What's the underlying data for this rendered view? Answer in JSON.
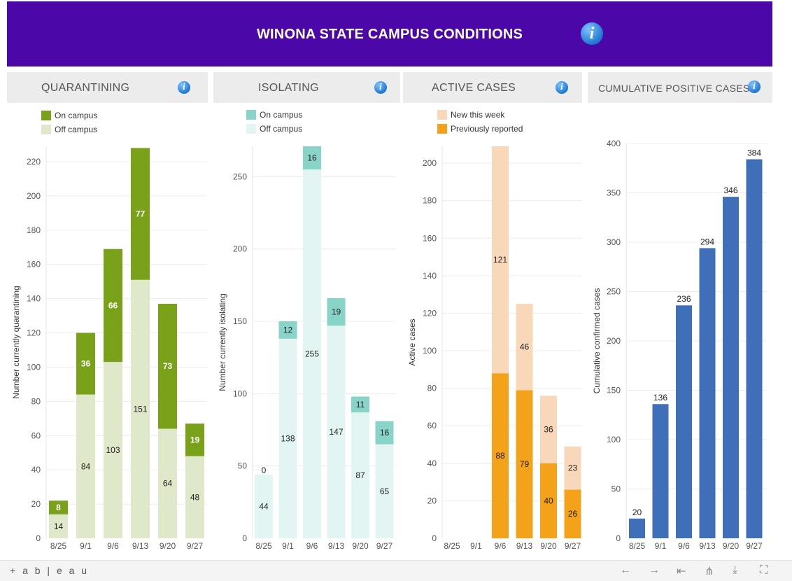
{
  "header": {
    "title": "WINONA STATE CAMPUS CONDITIONS",
    "info_glyph": "i"
  },
  "panels": [
    {
      "title": "QUARANTINING",
      "legend": [
        {
          "label": "On campus",
          "color": "#7aa11a"
        },
        {
          "label": "Off campus",
          "color": "#dfe8c9"
        }
      ]
    },
    {
      "title": "ISOLATING",
      "legend": [
        {
          "label": "On campus",
          "color": "#88d4c8"
        },
        {
          "label": "Off campus",
          "color": "#e3f5f2"
        }
      ]
    },
    {
      "title": "ACTIVE CASES",
      "legend": [
        {
          "label": "New this week",
          "color": "#f9d8b9"
        },
        {
          "label": "Previously reported",
          "color": "#f5a21b"
        }
      ]
    },
    {
      "title": "CUMULATIVE POSITIVE CASES",
      "legend": []
    }
  ],
  "chart_data": [
    {
      "type": "bar",
      "stacked": true,
      "categories": [
        "8/25",
        "9/1",
        "9/6",
        "9/13",
        "9/20",
        "9/27"
      ],
      "series": [
        {
          "name": "Off campus",
          "values": [
            14,
            84,
            103,
            151,
            64,
            48
          ],
          "color": "#dfe8c9"
        },
        {
          "name": "On campus",
          "values": [
            8,
            36,
            66,
            77,
            73,
            19
          ],
          "color": "#7aa11a"
        }
      ],
      "ylabel": "Number currently quarantining",
      "ylim": [
        0,
        229
      ],
      "yticks": [
        0,
        20,
        40,
        60,
        80,
        100,
        120,
        140,
        160,
        180,
        200,
        220
      ],
      "grid": true
    },
    {
      "type": "bar",
      "stacked": true,
      "categories": [
        "8/25",
        "9/1",
        "9/6",
        "9/13",
        "9/20",
        "9/27"
      ],
      "series": [
        {
          "name": "Off campus",
          "values": [
            44,
            138,
            255,
            147,
            87,
            65
          ],
          "color": "#e3f5f2"
        },
        {
          "name": "On campus",
          "values": [
            0,
            12,
            16,
            19,
            11,
            16
          ],
          "color": "#88d4c8"
        }
      ],
      "ylabel": "Number currently isolating",
      "ylim": [
        0,
        271
      ],
      "yticks": [
        0,
        50,
        100,
        150,
        200,
        250
      ],
      "grid": true
    },
    {
      "type": "bar",
      "stacked": true,
      "categories": [
        "8/25",
        "9/1",
        "9/6",
        "9/13",
        "9/20",
        "9/27"
      ],
      "series": [
        {
          "name": "Previously reported",
          "values": [
            null,
            null,
            88,
            79,
            40,
            26
          ],
          "color": "#f5a21b"
        },
        {
          "name": "New this week",
          "values": [
            null,
            null,
            121,
            46,
            36,
            23
          ],
          "color": "#f9d8b9"
        }
      ],
      "ylabel": "Active cases",
      "ylim": [
        0,
        209
      ],
      "yticks": [
        0,
        20,
        40,
        60,
        80,
        100,
        120,
        140,
        160,
        180,
        200
      ],
      "grid": true
    },
    {
      "type": "bar",
      "stacked": false,
      "categories": [
        "8/25",
        "9/1",
        "9/6",
        "9/13",
        "9/20",
        "9/27"
      ],
      "series": [
        {
          "name": "",
          "values": [
            20,
            136,
            236,
            294,
            346,
            384
          ],
          "color": "#3e6fb8"
        }
      ],
      "ylabel": "Cumulative confirmed cases",
      "ylim": [
        0,
        400
      ],
      "yticks": [
        0,
        50,
        100,
        150,
        200,
        250,
        300,
        350,
        400
      ],
      "grid": true
    }
  ],
  "footer": {
    "brand": "+ a b | e a u",
    "tools": [
      {
        "name": "undo-icon",
        "glyph": "←"
      },
      {
        "name": "redo-icon",
        "glyph": "→"
      },
      {
        "name": "revert-icon",
        "glyph": "⇤"
      },
      {
        "name": "share-icon",
        "glyph": "⋔"
      },
      {
        "name": "download-icon",
        "glyph": "⤓"
      },
      {
        "name": "fullscreen-icon",
        "glyph": "⛶"
      }
    ]
  }
}
